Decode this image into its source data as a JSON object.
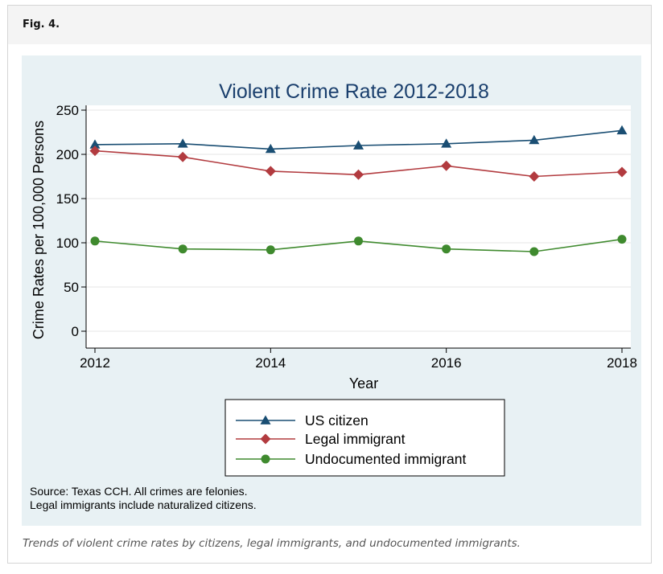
{
  "figure": {
    "label": "Fig. 4.",
    "caption": "Trends of violent crime rates by citizens, legal immigrants, and undocumented immigrants.",
    "source_lines": [
      "Source: Texas CCH. All crimes are felonies.",
      "Legal immigrants include naturalized citizens."
    ]
  },
  "chart_data": {
    "type": "line",
    "title": "Violent Crime Rate 2012-2018",
    "xlabel": "Year",
    "ylabel": "Crime Rates per 100,000 Persons",
    "x": [
      2012,
      2013,
      2014,
      2015,
      2016,
      2017,
      2018
    ],
    "xticks": [
      2012,
      2014,
      2016,
      2018
    ],
    "yticks": [
      0,
      50,
      100,
      150,
      200,
      250
    ],
    "xlim": [
      2012,
      2018
    ],
    "ylim": [
      0,
      250
    ],
    "grid": true,
    "legend_position": "bottom",
    "series": [
      {
        "name": "US citizen",
        "color": "#1a4e73",
        "marker": "triangle",
        "values": [
          211,
          212,
          206,
          210,
          212,
          216,
          227
        ]
      },
      {
        "name": "Legal immigrant",
        "color": "#b23b3f",
        "marker": "diamond",
        "values": [
          204,
          197,
          181,
          177,
          187,
          175,
          180
        ]
      },
      {
        "name": "Undocumented immigrant",
        "color": "#3f8a2e",
        "marker": "circle",
        "values": [
          102,
          93,
          92,
          102,
          93,
          90,
          104
        ]
      }
    ]
  }
}
